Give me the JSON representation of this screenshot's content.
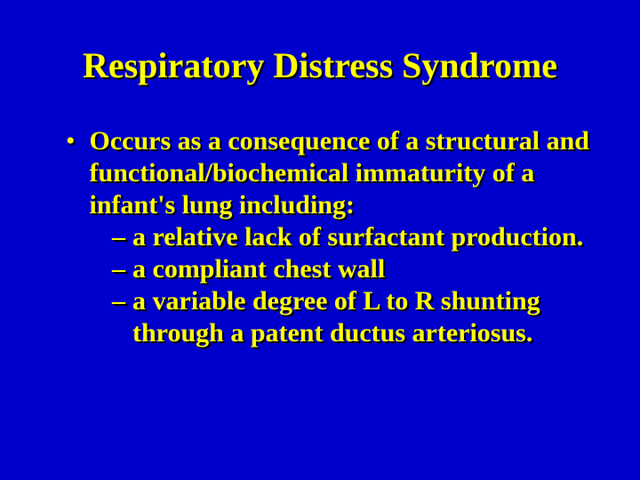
{
  "slide": {
    "background_color": "#0000cc",
    "text_color": "#ffff00",
    "shadow_color": "#000000",
    "font_family": "Times New Roman",
    "title": "Respiratory Distress Syndrome",
    "title_fontsize": 40,
    "body_fontsize": 30,
    "bullet": {
      "marker": "•",
      "text": "Occurs as a consequence of a structural and functional/biochemical immaturity of  a infant's lung including:"
    },
    "subbullets": [
      {
        "marker": "–",
        "text": "a relative lack of surfactant production."
      },
      {
        "marker": "–",
        "text": "a compliant chest wall"
      },
      {
        "marker": "–",
        "text": "a variable degree of L to R shunting through a patent ductus arteriosus."
      }
    ]
  }
}
